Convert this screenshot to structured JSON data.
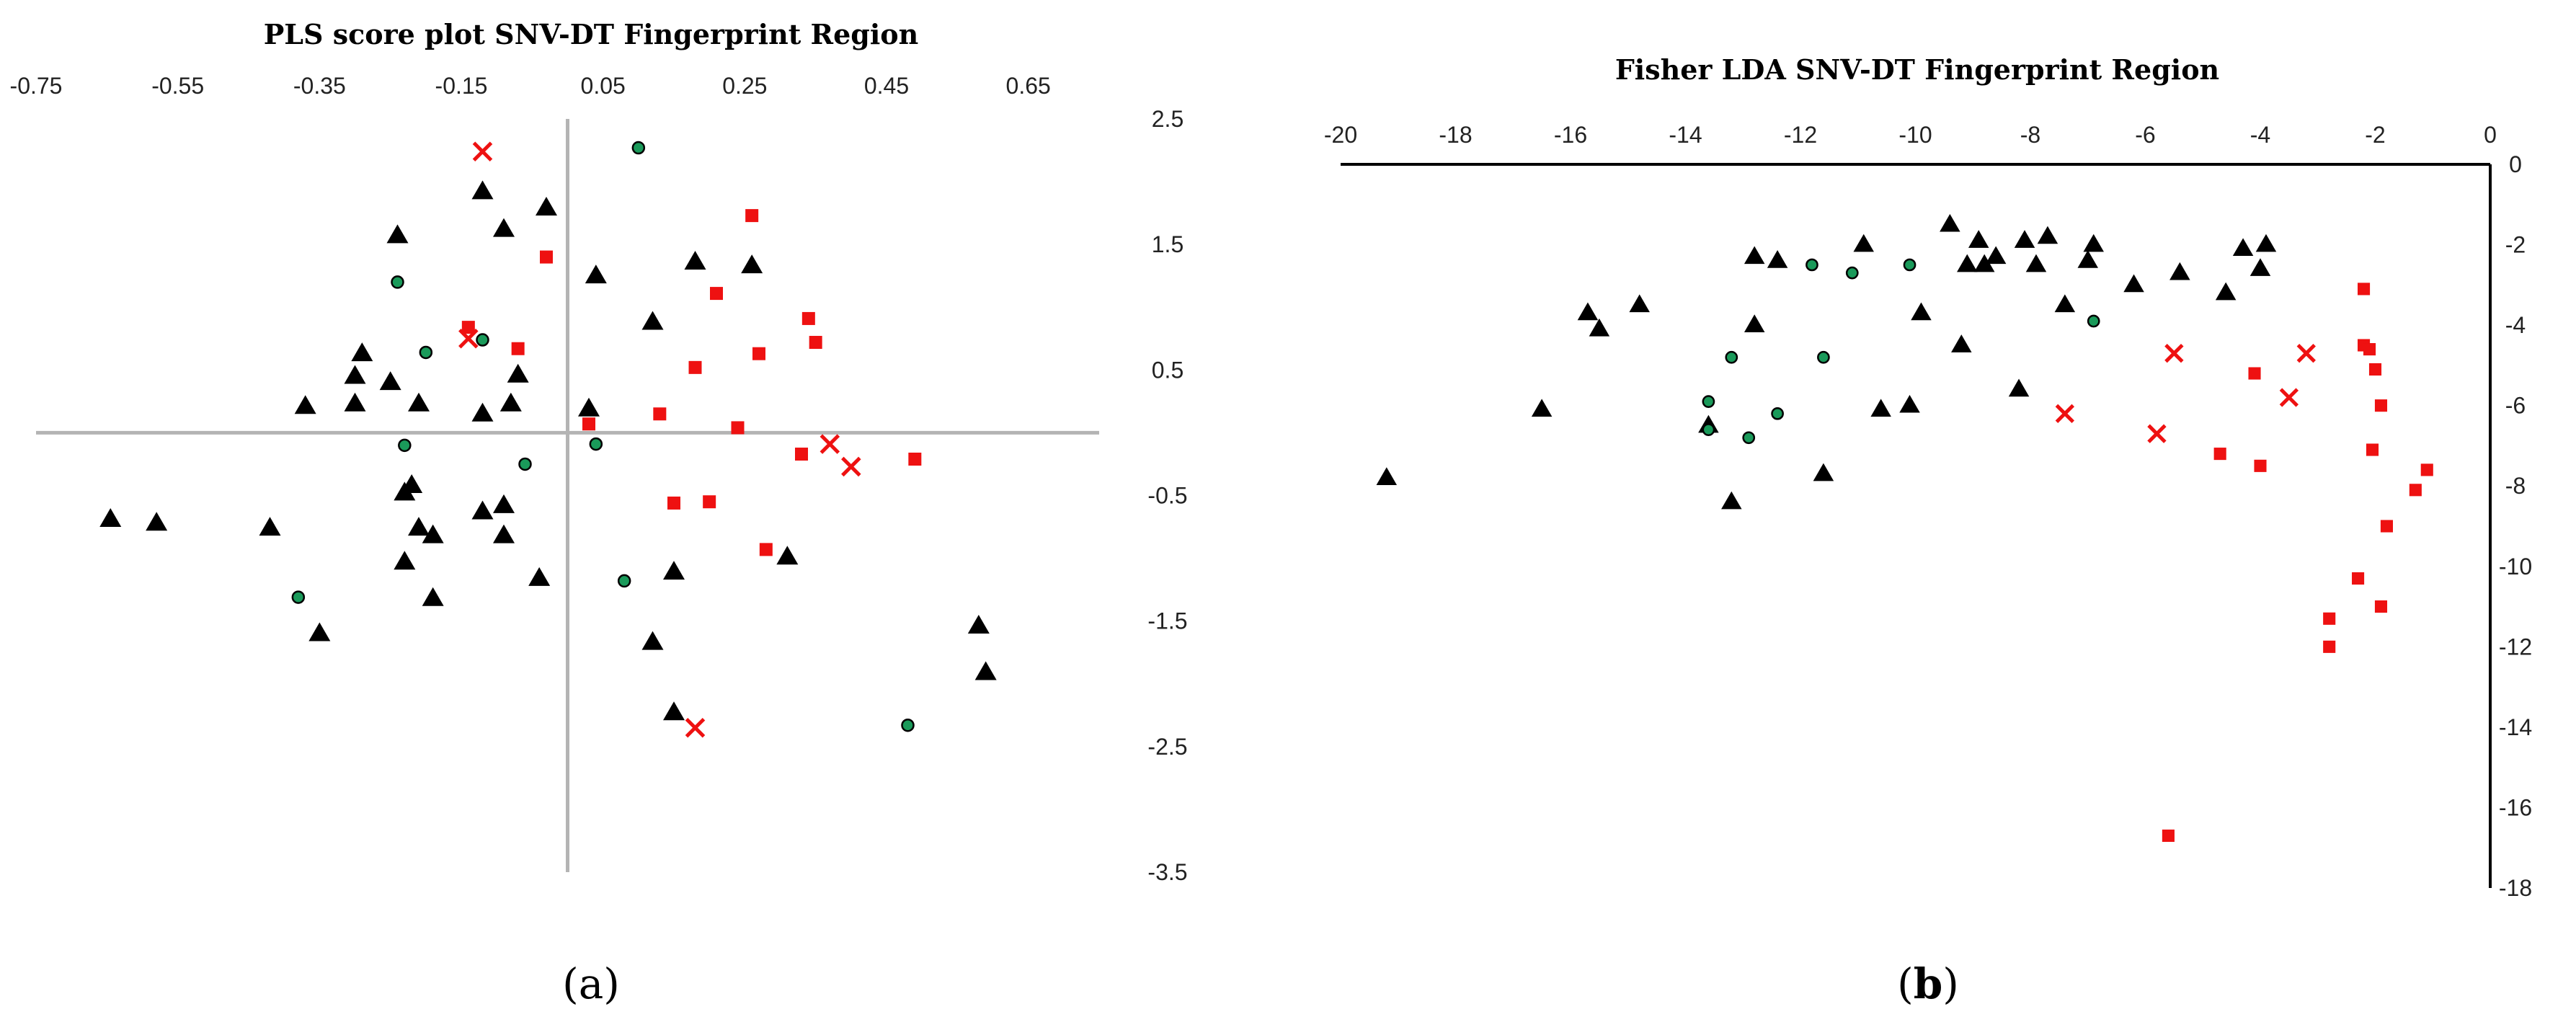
{
  "panel_labels": {
    "a": "a",
    "b": "b",
    "open": "(",
    "close": ")"
  },
  "chart_data": [
    {
      "type": "scatter",
      "title": "PLS score plot SNV-DT Fingerprint Region",
      "xlabel": "",
      "ylabel": "",
      "xlim": [
        -0.75,
        0.75
      ],
      "ylim": [
        -3.5,
        2.5
      ],
      "x_ticks": [
        "-0.75",
        "-0.55",
        "-0.35",
        "-0.15",
        "0.05",
        "0.25",
        "0.45",
        "0.65"
      ],
      "y_ticks": [
        "2.5",
        "1.5",
        "0.5",
        "-0.5",
        "-1.5",
        "-2.5",
        "-3.5"
      ],
      "x_tick_position": "top",
      "y_tick_position": "right",
      "axis_lines_through_origin": true,
      "grid": false,
      "legend": false,
      "series": [
        {
          "marker": "triangle",
          "color": "#000000",
          "points": [
            [
              -0.24,
              1.57
            ],
            [
              -0.12,
              1.92
            ],
            [
              -0.09,
              1.62
            ],
            [
              -0.03,
              1.79
            ],
            [
              -0.25,
              0.4
            ],
            [
              -0.29,
              0.63
            ],
            [
              -0.3,
              0.45
            ],
            [
              -0.37,
              0.21
            ],
            [
              -0.3,
              0.23
            ],
            [
              -0.21,
              0.23
            ],
            [
              -0.12,
              0.15
            ],
            [
              -0.08,
              0.23
            ],
            [
              -0.07,
              0.46
            ],
            [
              0.04,
              1.25
            ],
            [
              0.18,
              1.36
            ],
            [
              0.26,
              1.33
            ],
            [
              0.12,
              0.88
            ],
            [
              0.03,
              0.19
            ],
            [
              -0.645,
              -0.69
            ],
            [
              -0.58,
              -0.72
            ],
            [
              -0.42,
              -0.76
            ],
            [
              -0.22,
              -0.42
            ],
            [
              -0.23,
              -0.48
            ],
            [
              -0.21,
              -0.76
            ],
            [
              -0.19,
              -0.82
            ],
            [
              -0.09,
              -0.58
            ],
            [
              -0.12,
              -0.63
            ],
            [
              -0.09,
              -0.82
            ],
            [
              -0.23,
              -1.03
            ],
            [
              -0.04,
              -1.16
            ],
            [
              -0.19,
              -1.32
            ],
            [
              -0.35,
              -1.6
            ],
            [
              0.15,
              -1.11
            ],
            [
              0.31,
              -0.99
            ],
            [
              0.12,
              -1.67
            ],
            [
              0.15,
              -2.23
            ],
            [
              0.58,
              -1.54
            ],
            [
              0.59,
              -1.91
            ]
          ]
        },
        {
          "marker": "square",
          "color": "#ee1111",
          "points": [
            [
              -0.03,
              1.4
            ],
            [
              0.26,
              1.73
            ],
            [
              0.21,
              1.11
            ],
            [
              0.34,
              0.91
            ],
            [
              0.35,
              0.72
            ],
            [
              -0.07,
              0.67
            ],
            [
              -0.14,
              0.84
            ],
            [
              0.27,
              0.63
            ],
            [
              0.18,
              0.52
            ],
            [
              0.13,
              0.15
            ],
            [
              0.03,
              0.07
            ],
            [
              0.24,
              0.04
            ],
            [
              0.33,
              -0.17
            ],
            [
              0.49,
              -0.21
            ],
            [
              0.15,
              -0.56
            ],
            [
              0.2,
              -0.55
            ],
            [
              0.28,
              -0.93
            ]
          ]
        },
        {
          "marker": "circle",
          "color": "#1a9a5a",
          "points": [
            [
              0.1,
              2.27
            ],
            [
              -0.24,
              1.2
            ],
            [
              -0.2,
              0.64
            ],
            [
              -0.12,
              0.74
            ],
            [
              -0.23,
              -0.1
            ],
            [
              0.04,
              -0.09
            ],
            [
              -0.06,
              -0.25
            ],
            [
              0.08,
              -1.18
            ],
            [
              -0.38,
              -1.31
            ],
            [
              0.48,
              -2.33
            ]
          ]
        },
        {
          "marker": "x",
          "color": "#ee1111",
          "points": [
            [
              -0.12,
              2.24
            ],
            [
              -0.14,
              0.75
            ],
            [
              0.37,
              -0.09
            ],
            [
              0.4,
              -0.27
            ],
            [
              0.18,
              -2.35
            ]
          ]
        }
      ]
    },
    {
      "type": "scatter",
      "title": "Fisher LDA SNV-DT Fingerprint Region",
      "xlabel": "",
      "ylabel": "",
      "xlim": [
        -20,
        0
      ],
      "ylim": [
        -18,
        0
      ],
      "x_ticks": [
        "-20",
        "-18",
        "-16",
        "-14",
        "-12",
        "-10",
        "-8",
        "-6",
        "-4",
        "-2",
        "0"
      ],
      "y_ticks": [
        "0",
        "-2",
        "-4",
        "-6",
        "-8",
        "-10",
        "-12",
        "-14",
        "-16",
        "-18"
      ],
      "x_tick_position": "top",
      "y_tick_position": "right",
      "axis_lines_through_origin": true,
      "grid": false,
      "legend": false,
      "series": [
        {
          "marker": "triangle",
          "color": "#000000",
          "points": [
            [
              -19.2,
              -7.8
            ],
            [
              -16.5,
              -6.1
            ],
            [
              -15.7,
              -3.7
            ],
            [
              -15.5,
              -4.1
            ],
            [
              -14.8,
              -3.5
            ],
            [
              -13.6,
              -6.5
            ],
            [
              -13.2,
              -8.4
            ],
            [
              -12.8,
              -2.3
            ],
            [
              -12.4,
              -2.4
            ],
            [
              -12.8,
              -4.0
            ],
            [
              -11.6,
              -7.7
            ],
            [
              -10.9,
              -2.0
            ],
            [
              -10.6,
              -6.1
            ],
            [
              -10.1,
              -6.0
            ],
            [
              -9.9,
              -3.7
            ],
            [
              -9.4,
              -1.5
            ],
            [
              -9.2,
              -4.5
            ],
            [
              -9.1,
              -2.5
            ],
            [
              -8.9,
              -1.9
            ],
            [
              -8.8,
              -2.5
            ],
            [
              -8.6,
              -2.3
            ],
            [
              -8.2,
              -5.6
            ],
            [
              -8.1,
              -1.9
            ],
            [
              -7.9,
              -2.5
            ],
            [
              -7.7,
              -1.8
            ],
            [
              -7.4,
              -3.5
            ],
            [
              -7.0,
              -2.4
            ],
            [
              -6.9,
              -2.0
            ],
            [
              -6.2,
              -3.0
            ],
            [
              -5.4,
              -2.7
            ],
            [
              -4.6,
              -3.2
            ],
            [
              -4.3,
              -2.1
            ],
            [
              -3.9,
              -2.0
            ],
            [
              -4.0,
              -2.6
            ]
          ]
        },
        {
          "marker": "square",
          "color": "#ee1111",
          "points": [
            [
              -2.2,
              -3.1
            ],
            [
              -2.2,
              -4.5
            ],
            [
              -2.1,
              -4.6
            ],
            [
              -2.0,
              -5.1
            ],
            [
              -1.9,
              -6.0
            ],
            [
              -2.05,
              -7.1
            ],
            [
              -1.1,
              -7.6
            ],
            [
              -1.3,
              -8.1
            ],
            [
              -1.8,
              -9.0
            ],
            [
              -2.3,
              -10.3
            ],
            [
              -1.9,
              -11.0
            ],
            [
              -2.8,
              -11.3
            ],
            [
              -2.8,
              -12.0
            ],
            [
              -4.1,
              -5.2
            ],
            [
              -4.7,
              -7.2
            ],
            [
              -4.0,
              -7.5
            ],
            [
              -5.6,
              -16.7
            ]
          ]
        },
        {
          "marker": "circle",
          "color": "#1a9a5a",
          "points": [
            [
              -11.8,
              -2.5
            ],
            [
              -11.1,
              -2.7
            ],
            [
              -10.1,
              -2.5
            ],
            [
              -6.9,
              -3.9
            ],
            [
              -13.2,
              -4.8
            ],
            [
              -11.6,
              -4.8
            ],
            [
              -13.6,
              -5.9
            ],
            [
              -13.6,
              -6.6
            ],
            [
              -12.4,
              -6.2
            ],
            [
              -12.9,
              -6.8
            ]
          ]
        },
        {
          "marker": "x",
          "color": "#ee1111",
          "points": [
            [
              -5.5,
              -4.7
            ],
            [
              -3.2,
              -4.7
            ],
            [
              -3.5,
              -5.8
            ],
            [
              -7.4,
              -6.2
            ],
            [
              -5.8,
              -6.7
            ]
          ]
        }
      ]
    }
  ]
}
